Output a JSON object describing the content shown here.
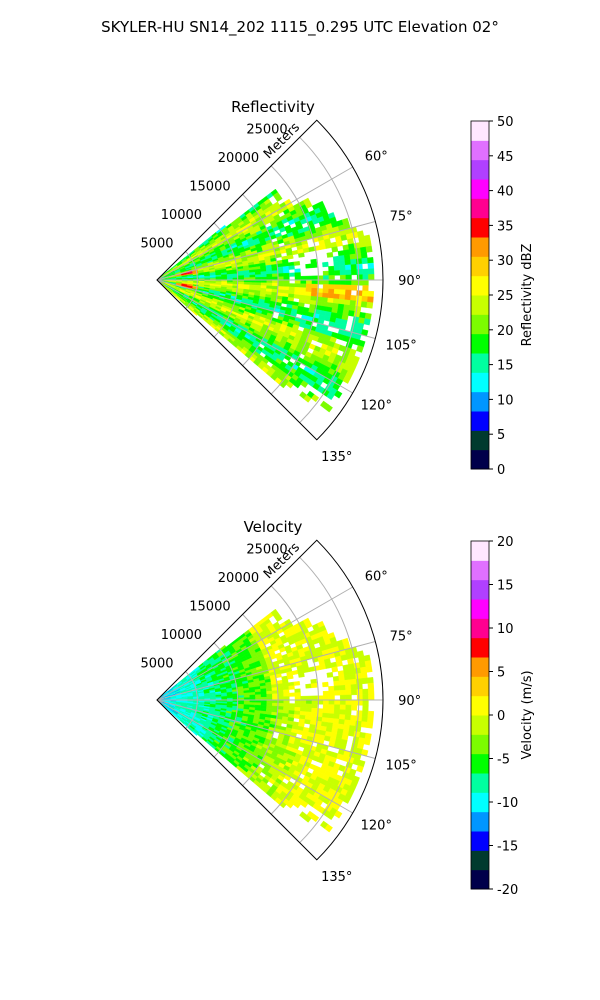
{
  "figure": {
    "title": "SKYLER-HU  SN14_202  1115_0.295 UTC Elevation 02°"
  },
  "chart_data": [
    {
      "type": "heatmap",
      "subtype": "polar-sector",
      "title": "Reflectivity",
      "radial_label": "Meters",
      "radial_ticks": [
        "5000",
        "10000",
        "15000",
        "20000",
        "25000"
      ],
      "radial_tick_values": [
        5000,
        10000,
        15000,
        20000,
        25000
      ],
      "range_max": 28000,
      "angle_ticks": [
        "60°",
        "75°",
        "90°",
        "105°",
        "120°",
        "135°"
      ],
      "angle_tick_values": [
        60,
        75,
        90,
        105,
        120,
        135
      ],
      "theta_range": [
        45,
        135
      ],
      "grid": true,
      "colorbar": {
        "label": "Reflectivity dBZ",
        "ticks": [
          "0",
          "5",
          "10",
          "15",
          "20",
          "25",
          "30",
          "35",
          "40",
          "45",
          "50"
        ],
        "vmin": 0,
        "vmax": 50,
        "colormap": [
          "#00004a",
          "#003a2e",
          "#0000ff",
          "#0096ff",
          "#00ffff",
          "#00ffa0",
          "#00ff00",
          "#7cfc00",
          "#c8ff00",
          "#ffff00",
          "#ffd000",
          "#ff9a00",
          "#ff0000",
          "#ff0090",
          "#ff00ff",
          "#b040ff",
          "#e070ff",
          "#ffe8ff"
        ]
      },
      "field_description": "mostly 18-26 dBZ with a strong-echo cluster near 10000 m around 75-80° and 100°, scattered high-reflectivity clutter points beyond 20000 m"
    },
    {
      "type": "heatmap",
      "subtype": "polar-sector",
      "title": "Velocity",
      "radial_label": "Meters",
      "radial_ticks": [
        "5000",
        "10000",
        "15000",
        "20000",
        "25000"
      ],
      "radial_tick_values": [
        5000,
        10000,
        15000,
        20000,
        25000
      ],
      "range_max": 28000,
      "angle_ticks": [
        "60°",
        "75°",
        "90°",
        "105°",
        "120°",
        "135°"
      ],
      "angle_tick_values": [
        60,
        75,
        90,
        105,
        120,
        135
      ],
      "theta_range": [
        45,
        135
      ],
      "grid": true,
      "colorbar": {
        "label": "Velocity (m/s)",
        "ticks": [
          "-20",
          "-15",
          "-10",
          "-5",
          "0",
          "5",
          "10",
          "15",
          "20"
        ],
        "vmin": -20,
        "vmax": 20,
        "colormap": [
          "#00004a",
          "#003a2e",
          "#0000ff",
          "#0096ff",
          "#00ffff",
          "#00ffa0",
          "#00ff00",
          "#7cfc00",
          "#c8ff00",
          "#ffff00",
          "#ffd000",
          "#ff9a00",
          "#ff0000",
          "#ff0090",
          "#ff00ff",
          "#b040ff",
          "#e070ff",
          "#ffe8ff"
        ]
      },
      "field_description": "near-radar values around -10 m/s (cyan/green), becoming -5 to 0 m/s (green to yellow) toward far range, yellow 0 m/s near 60-90° far range"
    }
  ]
}
